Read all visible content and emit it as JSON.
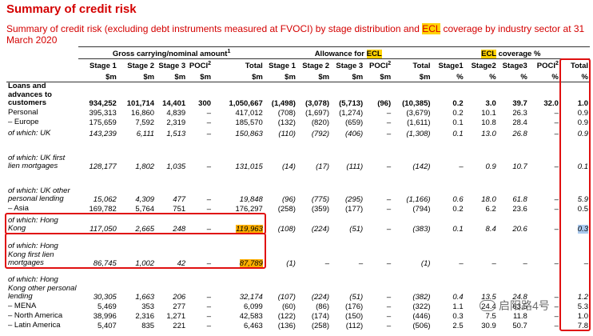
{
  "title": "Summary of credit risk",
  "subtitle": {
    "part1": "Summary of credit risk (excluding debt instruments measured at FVOCI) by stage distribution and ",
    "ecl1": "ECL",
    "part2": " coverage by industry sector at 31 March 2020"
  },
  "groups": {
    "gross": "Gross carrying/nominal amount",
    "gross_sup": "1",
    "allowance": "Allowance for ",
    "allowance_ecl": "ECL",
    "coverage_ecl": "ECL",
    "coverage": " coverage %"
  },
  "columns": [
    "Stage 1",
    "Stage 2",
    "Stage 3",
    "POCI",
    "Total",
    "Stage 1",
    "Stage 2",
    "Stage 3",
    "POCI",
    "Total",
    "Stage1",
    "Stage2",
    "Stage3",
    "POCI",
    "Total"
  ],
  "units": [
    "$m",
    "$m",
    "$m",
    "$m",
    "$m",
    "$m",
    "$m",
    "$m",
    "$m",
    "$m",
    "%",
    "%",
    "%",
    "%",
    "%"
  ],
  "poci_sup": "2",
  "rows": [
    {
      "label": "Loans and advances to customers",
      "italic": false,
      "values": [
        "934,252",
        "101,714",
        "14,401",
        "300",
        "1,050,667",
        "(1,498)",
        "(3,078)",
        "(5,713)",
        "(96)",
        "(10,385)",
        "0.2",
        "3.0",
        "39.7",
        "32.0",
        "1.0"
      ]
    },
    {
      "label": "Personal",
      "italic": false,
      "values": [
        "395,313",
        "16,860",
        "4,839",
        "–",
        "417,012",
        "(708)",
        "(1,697)",
        "(1,274)",
        "–",
        "(3,679)",
        "0.2",
        "10.1",
        "26.3",
        "–",
        "0.9"
      ]
    },
    {
      "label": "– Europe",
      "italic": false,
      "values": [
        "175,659",
        "7,592",
        "2,319",
        "–",
        "185,570",
        "(132)",
        "(820)",
        "(659)",
        "–",
        "(1,611)",
        "0.1",
        "10.8",
        "28.4",
        "–",
        "0.9"
      ]
    },
    {
      "label": "of which: UK",
      "italic": true,
      "values": [
        "143,239",
        "6,111",
        "1,513",
        "–",
        "150,863",
        "(110)",
        "(792)",
        "(406)",
        "–",
        "(1,308)",
        "0.1",
        "13.0",
        "26.8",
        "–",
        "0.9"
      ]
    },
    {
      "label": "of which: UK first lien mortgages",
      "italic": true,
      "values": [
        "128,177",
        "1,802",
        "1,035",
        "–",
        "131,015",
        "(14)",
        "(17)",
        "(111)",
        "–",
        "(142)",
        "–",
        "0.9",
        "10.7",
        "–",
        "0.1"
      ]
    },
    {
      "label": "of which: UK other personal lending",
      "italic": true,
      "values": [
        "15,062",
        "4,309",
        "477",
        "–",
        "19,848",
        "(96)",
        "(775)",
        "(295)",
        "–",
        "(1,166)",
        "0.6",
        "18.0",
        "61.8",
        "–",
        "5.9"
      ]
    },
    {
      "label": "– Asia",
      "italic": false,
      "values": [
        "169,782",
        "5,764",
        "751",
        "–",
        "176,297",
        "(258)",
        "(359)",
        "(177)",
        "–",
        "(794)",
        "0.2",
        "6.2",
        "23.6",
        "–",
        "0.5"
      ]
    },
    {
      "label": "of which: Hong Kong",
      "italic": true,
      "values": [
        "117,050",
        "2,665",
        "248",
        "–",
        "119,963",
        "(108)",
        "(224)",
        "(51)",
        "–",
        "(383)",
        "0.1",
        "8.4",
        "20.6",
        "–",
        "0.3"
      ]
    },
    {
      "label": "of which: Hong Kong first lien mortgages",
      "italic": true,
      "values": [
        "86,745",
        "1,002",
        "42",
        "–",
        "87,789",
        "(1)",
        "–",
        "–",
        "–",
        "(1)",
        "–",
        "–",
        "–",
        "–",
        "–"
      ]
    },
    {
      "label": "of which: Hong Kong other personal lending",
      "italic": true,
      "values": [
        "30,305",
        "1,663",
        "206",
        "–",
        "32,174",
        "(107)",
        "(224)",
        "(51)",
        "–",
        "(382)",
        "0.4",
        "13.5",
        "24.8",
        "–",
        "1.2"
      ]
    },
    {
      "label": "– MENA",
      "italic": false,
      "values": [
        "5,469",
        "353",
        "277",
        "–",
        "6,099",
        "(60)",
        "(86)",
        "(176)",
        "–",
        "(322)",
        "1.1",
        "24.4",
        "63.5",
        "–",
        "5.3"
      ]
    },
    {
      "label": "– North America",
      "italic": false,
      "values": [
        "38,996",
        "2,316",
        "1,271",
        "–",
        "42,583",
        "(122)",
        "(174)",
        "(150)",
        "–",
        "(446)",
        "0.3",
        "7.5",
        "11.8",
        "–",
        "1.0"
      ]
    },
    {
      "label": "– Latin America",
      "italic": false,
      "values": [
        "5,407",
        "835",
        "221",
        "–",
        "6,463",
        "(136)",
        "(258)",
        "(112)",
        "–",
        "(506)",
        "2.5",
        "30.9",
        "50.7",
        "–",
        "7.8"
      ]
    }
  ],
  "watermark": "启阳路4号"
}
